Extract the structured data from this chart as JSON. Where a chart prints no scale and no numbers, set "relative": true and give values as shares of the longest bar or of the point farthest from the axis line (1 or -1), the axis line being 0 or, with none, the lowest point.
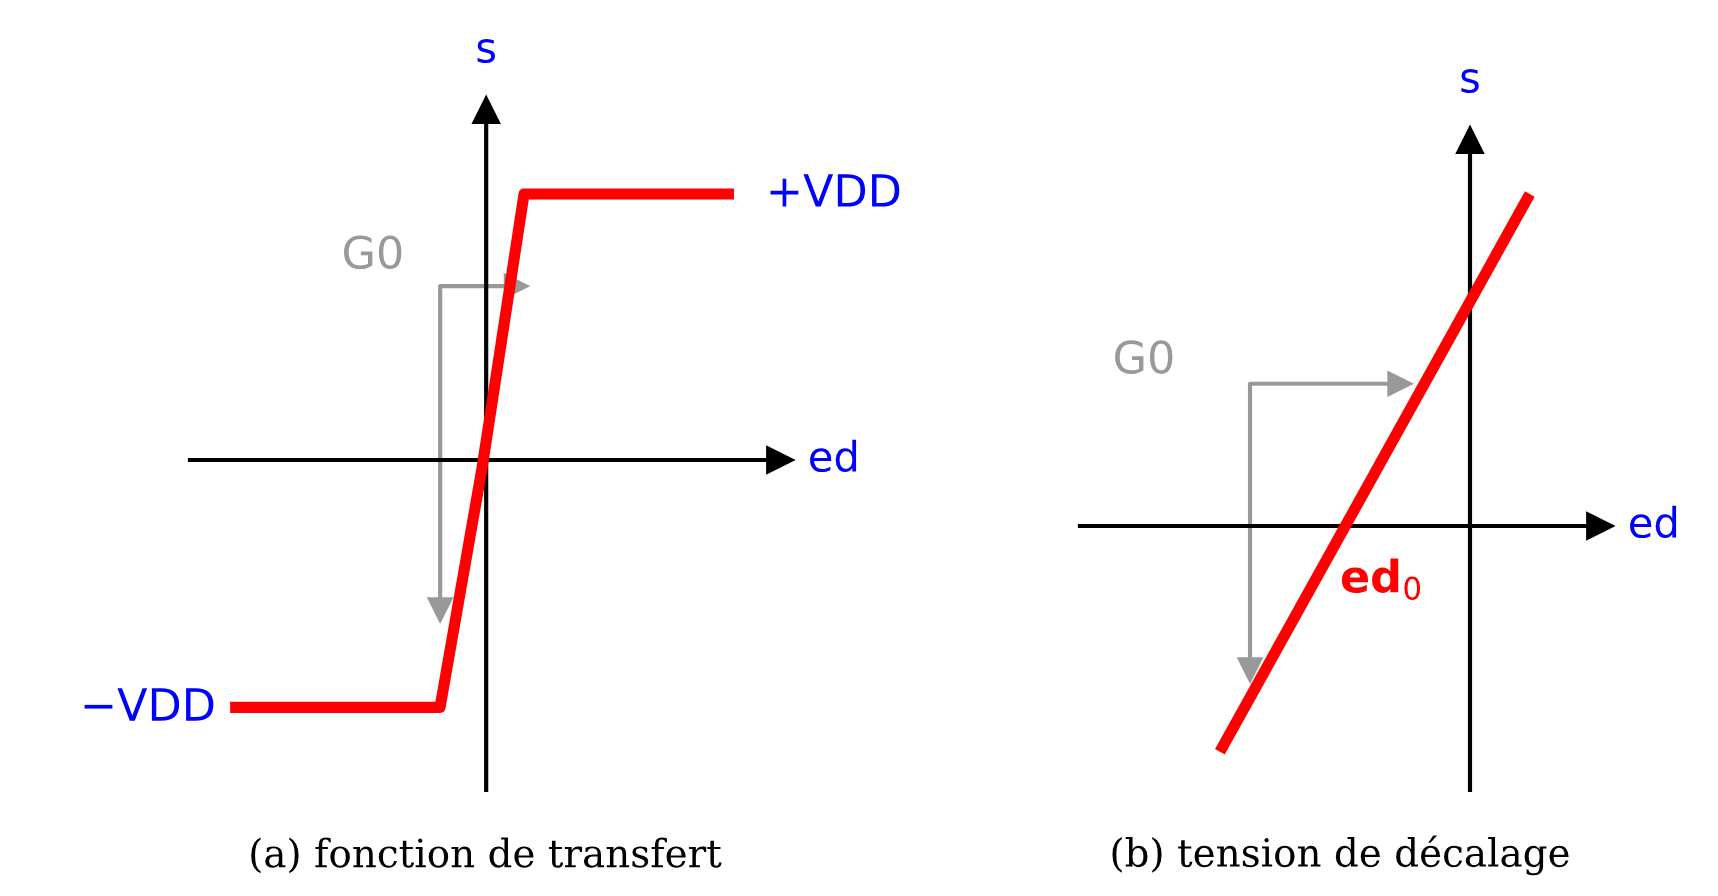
{
  "chart_data": [
    {
      "type": "line",
      "title": "(a) fonction de transfert",
      "xlabel": "ed",
      "ylabel": "s",
      "relative": true,
      "categories": [
        null,
        null,
        null,
        null,
        null,
        null,
        null,
        null,
        null,
        null,
        null,
        null,
        null
      ],
      "series": [
        {
          "color": "#ff0000",
          "values": [
            -0.93,
            -0.93,
            -0.93,
            -0.93,
            -0.93,
            -0.93,
            -0.03,
            1.0,
            1.0,
            1.0,
            1.0,
            1.0,
            1.0
          ]
        }
      ],
      "annotations": [
        "+VDD",
        "−VDD",
        "G0"
      ]
    },
    {
      "type": "line",
      "title": "(b) tension de décalage",
      "xlabel": "ed",
      "ylabel": "s",
      "relative": true,
      "categories": [
        null,
        null
      ],
      "series": [
        {
          "color": "#ff0000",
          "values": [
            -0.68,
            1.0
          ]
        }
      ],
      "annotations": [
        "G0",
        "ed$_{0}$"
      ]
    }
  ]
}
